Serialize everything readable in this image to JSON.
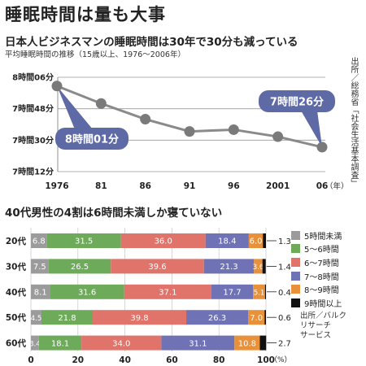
{
  "headline": "睡眠時間は量も大事",
  "chart_data": [
    {
      "type": "line",
      "title": "日本人ビジネスマンの睡眠時間は30年で30分も減っている",
      "subtitle": "平均睡眠時間の推移（15歳以上、1976〜2006年）",
      "x": [
        1976,
        1981,
        1986,
        1991,
        1996,
        2001,
        2006
      ],
      "x_tick_labels": [
        "1976",
        "81",
        "86",
        "91",
        "96",
        "2001",
        "06"
      ],
      "x_unit": "（年）",
      "values": [
        481,
        471,
        462,
        455,
        456,
        452,
        446
      ],
      "y_unit": "minutes",
      "ylim": [
        432,
        486
      ],
      "y_ticks": [
        486,
        468,
        450,
        432
      ],
      "y_tick_labels": [
        "8時間06分",
        "7時間48分",
        "7時間30分",
        "7時間12分"
      ],
      "grid": true,
      "annotations": [
        {
          "text": "8時間01分",
          "x": 1976
        },
        {
          "text": "7時間26分",
          "x": 2006
        }
      ],
      "source": "出所／総務省「社会生活基本調査」",
      "colors": {
        "line": "#8a8a8a",
        "marker": "#7a7a7a",
        "callout": "#5e6aa6"
      }
    },
    {
      "type": "bar",
      "orientation": "horizontal",
      "stacked": true,
      "title": "40代男性の4割は6時間未満しか寝ていない",
      "categories": [
        "20代",
        "30代",
        "40代",
        "50代",
        "60代"
      ],
      "series": [
        {
          "name": "5時間未満",
          "values": [
            6.8,
            7.5,
            8.1,
            4.5,
            3.4
          ],
          "color": "#9b9b9b"
        },
        {
          "name": "5〜6時間",
          "values": [
            31.5,
            26.5,
            31.6,
            21.8,
            18.1
          ],
          "color": "#6daa5a"
        },
        {
          "name": "6〜7時間",
          "values": [
            36.0,
            39.6,
            37.1,
            39.8,
            34.0
          ],
          "color": "#e0736a"
        },
        {
          "name": "7〜8時間",
          "values": [
            18.4,
            21.3,
            17.7,
            26.3,
            31.1
          ],
          "color": "#6f72b4"
        },
        {
          "name": "8〜9時間",
          "values": [
            6.0,
            3.6,
            5.1,
            7.0,
            10.8
          ],
          "color": "#e8913a"
        },
        {
          "name": "9時間以上",
          "values": [
            1.3,
            1.4,
            0.4,
            0.6,
            2.7
          ],
          "color": "#111111"
        }
      ],
      "xlim": [
        0,
        100
      ],
      "x_ticks": [
        0,
        20,
        40,
        60,
        80,
        100
      ],
      "x_unit": "（%）",
      "legend_position": "right",
      "source": "出所／バルクリサーチサービス",
      "source_lines": [
        "出所／バルク",
        "リサーチ",
        "サービス"
      ]
    }
  ]
}
